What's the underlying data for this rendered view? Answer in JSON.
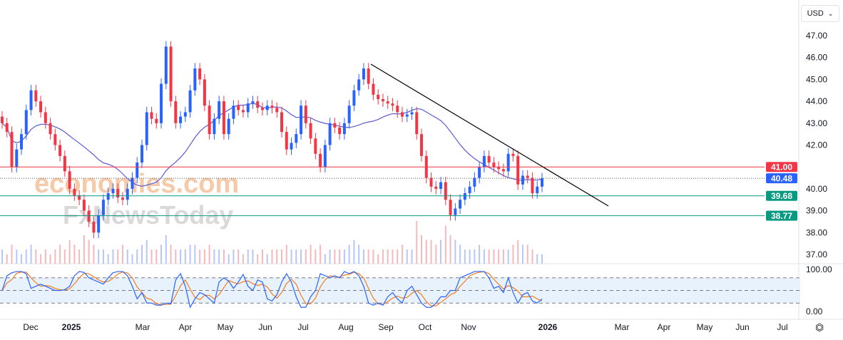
{
  "currency_selector": {
    "value": "USD",
    "icon": "chevron-down-icon"
  },
  "watermarks": [
    "economies.com",
    "FxNewsToday"
  ],
  "colors": {
    "up": "#2962ff",
    "down": "#f23645",
    "ma": "#5b5bd6",
    "stoch_k": "#2962ff",
    "stoch_d": "#f57c20",
    "resistance": "#f23645",
    "support": "#089981",
    "current": "#2962ff",
    "trendline": "#000000"
  },
  "chart_data": {
    "type": "candlestick",
    "price_axis": {
      "ylim": [
        36.7,
        47.7
      ],
      "ticks": [
        "47.00",
        "46.00",
        "45.00",
        "44.00",
        "43.00",
        "42.00",
        "40.00",
        "39.00",
        "38.00",
        "37.00"
      ]
    },
    "time_axis": {
      "ticks": [
        "Dec",
        "2025",
        "Mar",
        "Apr",
        "May",
        "Jun",
        "Jul",
        "Aug",
        "Sep",
        "Oct",
        "Nov",
        "2026",
        "Mar",
        "Apr",
        "May",
        "Jun",
        "Jul"
      ]
    },
    "closes": [
      43.0,
      42.6,
      41.0,
      41.8,
      42.5,
      43.6,
      44.5,
      44.0,
      43.5,
      43.0,
      42.5,
      42.0,
      41.5,
      40.8,
      40.0,
      39.7,
      39.5,
      39.0,
      38.5,
      38.0,
      38.8,
      39.5,
      39.8,
      40.0,
      39.6,
      39.5,
      40.0,
      40.5,
      41.2,
      42.0,
      43.5,
      43.2,
      43.0,
      44.8,
      46.5,
      44.0,
      43.0,
      43.3,
      43.5,
      44.5,
      45.5,
      45.0,
      43.8,
      42.5,
      43.2,
      44.0,
      42.5,
      43.2,
      43.8,
      43.6,
      43.5,
      43.9,
      44.0,
      43.7,
      43.6,
      43.8,
      43.7,
      43.5,
      42.6,
      41.8,
      42.1,
      42.5,
      43.8,
      43.0,
      42.3,
      41.6,
      41.0,
      42.0,
      43.0,
      42.8,
      42.5,
      43.0,
      43.8,
      44.5,
      45.0,
      45.5,
      44.8,
      44.3,
      44.1,
      44.0,
      43.9,
      43.8,
      43.5,
      43.3,
      43.4,
      43.5,
      42.5,
      41.5,
      40.5,
      40.1,
      40.0,
      40.3,
      39.5,
      38.8,
      39.1,
      39.5,
      39.8,
      40.1,
      40.5,
      41.0,
      41.5,
      41.2,
      41.0,
      40.9,
      40.8,
      41.6,
      41.5,
      40.2,
      40.6,
      40.5,
      39.8,
      40.1,
      40.48
    ],
    "volume": [
      3,
      2,
      4,
      3,
      2,
      3,
      4,
      3,
      2,
      3,
      2,
      3,
      4,
      3,
      5,
      4,
      3,
      6,
      5,
      4,
      3,
      3,
      2,
      3,
      3,
      4,
      3,
      2,
      3,
      4,
      5,
      3,
      3,
      4,
      6,
      4,
      3,
      3,
      3,
      4,
      4,
      3,
      3,
      4,
      3,
      3,
      3,
      2,
      3,
      3,
      2,
      3,
      3,
      2,
      3,
      2,
      3,
      3,
      3,
      4,
      3,
      3,
      3,
      3,
      4,
      3,
      4,
      2,
      3,
      3,
      3,
      3,
      4,
      5,
      4,
      3,
      3,
      3,
      2,
      3,
      3,
      3,
      3,
      4,
      3,
      3,
      9,
      6,
      5,
      5,
      4,
      5,
      8,
      6,
      5,
      4,
      3,
      3,
      3,
      4,
      3,
      3,
      3,
      3,
      3,
      3,
      4,
      5,
      4,
      4,
      3,
      2,
      2
    ],
    "stochastic": {
      "ylim": [
        0,
        100
      ],
      "ticks": [
        "100.00",
        "0.00"
      ],
      "levels": [
        80,
        50,
        20
      ],
      "k": [
        50,
        85,
        92,
        95,
        95,
        90,
        55,
        60,
        65,
        60,
        55,
        50,
        50,
        52,
        60,
        85,
        95,
        93,
        80,
        75,
        70,
        65,
        80,
        92,
        95,
        95,
        85,
        60,
        30,
        45,
        20,
        20,
        15,
        15,
        20,
        18,
        75,
        90,
        60,
        10,
        30,
        45,
        40,
        30,
        20,
        70,
        80,
        72,
        55,
        70,
        88,
        60,
        50,
        75,
        70,
        30,
        25,
        40,
        70,
        90,
        70,
        35,
        10,
        10,
        35,
        50,
        90,
        85,
        80,
        85,
        80,
        95,
        90,
        95,
        85,
        60,
        20,
        15,
        20,
        15,
        35,
        45,
        30,
        20,
        50,
        60,
        40,
        20,
        10,
        10,
        20,
        35,
        35,
        50,
        50,
        80,
        85,
        90,
        95,
        95,
        95,
        80,
        55,
        60,
        45,
        80,
        45,
        20,
        40,
        45,
        25,
        20,
        30
      ]
    },
    "moving_average_period": 20,
    "horizontal_levels": [
      {
        "price": 41.0,
        "label": "41.00",
        "kind": "resistance"
      },
      {
        "price": 40.48,
        "label": "40.48",
        "kind": "current"
      },
      {
        "price": 39.68,
        "label": "39.68",
        "kind": "support"
      },
      {
        "price": 38.77,
        "label": "38.77",
        "kind": "support"
      }
    ]
  }
}
